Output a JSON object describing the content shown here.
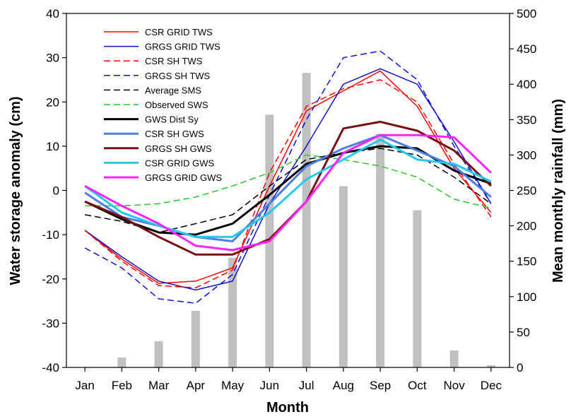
{
  "chart_data": {
    "type": "line",
    "categories": [
      "Jan",
      "Feb",
      "Mar",
      "Apr",
      "May",
      "Jun",
      "Jul",
      "Aug",
      "Sep",
      "Oct",
      "Nov",
      "Dec"
    ],
    "xlabel": "Month",
    "ylabel": "Water storage anomaly (cm)",
    "y2label": "Mean monthly rainfall (mm)",
    "ylim": [
      -40,
      40
    ],
    "y2lim": [
      0,
      500
    ],
    "yticks": [
      -40,
      -30,
      -20,
      -10,
      0,
      10,
      20,
      30,
      40
    ],
    "y2ticks": [
      0,
      50,
      100,
      150,
      200,
      250,
      300,
      350,
      400,
      450,
      500
    ],
    "grid": false,
    "legend_position": "top-left",
    "rainfall_bars": {
      "axis": "right",
      "color": "#c0c0c0",
      "values": [
        0,
        14,
        37,
        80,
        155,
        357,
        416,
        256,
        330,
        222,
        24,
        3
      ]
    },
    "series": [
      {
        "name": "CSR GRID TWS",
        "color": "#ff0000",
        "dash": "solid",
        "width": 1.5,
        "values": [
          -9,
          -15.5,
          -21,
          -20.5,
          -17.5,
          1,
          18,
          22.5,
          27,
          19,
          5,
          -5
        ]
      },
      {
        "name": "GRGS GRID TWS",
        "color": "#1010d0",
        "dash": "solid",
        "width": 1.5,
        "values": [
          -9,
          -15,
          -20.5,
          -22.5,
          -20.5,
          -3,
          10,
          24,
          27.5,
          24,
          11,
          -3
        ]
      },
      {
        "name": "CSR SH TWS",
        "color": "#ff0000",
        "dash": "dashed",
        "width": 1.5,
        "values": [
          -9,
          -16,
          -21.5,
          -22,
          -18,
          4,
          19,
          23,
          25,
          20,
          6,
          -6
        ]
      },
      {
        "name": "GRGS SH TWS",
        "color": "#1010d0",
        "dash": "dashed",
        "width": 1.5,
        "values": [
          -13,
          -17.5,
          -24.5,
          -25.5,
          -19,
          -1,
          16,
          30,
          31.5,
          25,
          10,
          -3
        ]
      },
      {
        "name": "Average SMS",
        "color": "#000000",
        "dash": "dashed",
        "width": 1.5,
        "values": [
          -5.5,
          -7,
          -9.5,
          -7.5,
          -5.5,
          1,
          7,
          8.5,
          9.5,
          8,
          3,
          -3
        ]
      },
      {
        "name": "Observed SWS",
        "color": "#22cc22",
        "dash": "dashed",
        "width": 1.5,
        "values": [
          -3.5,
          -3.5,
          -3,
          -1.5,
          1,
          4,
          8,
          7,
          5.5,
          3,
          -2,
          -4
        ]
      },
      {
        "name": "GWS Dist Sy",
        "color": "#000000",
        "dash": "solid",
        "width": 3,
        "values": [
          -2.5,
          -6.5,
          -9.5,
          -10,
          -7.5,
          -1,
          6,
          8.5,
          10,
          9.5,
          4.5,
          1.5
        ]
      },
      {
        "name": "CSR SH GWS",
        "color": "#4a7ee6",
        "dash": "solid",
        "width": 3,
        "values": [
          -0.5,
          -6,
          -8,
          -10.5,
          -11.5,
          -3,
          5.5,
          9.5,
          12.5,
          9,
          5.5,
          -1.5
        ]
      },
      {
        "name": "GRGS SH GWS",
        "color": "#7a0f0f",
        "dash": "solid",
        "width": 3,
        "values": [
          -2.5,
          -6,
          -10.5,
          -14.5,
          -14.5,
          -11,
          -2.5,
          14,
          15.5,
          13.5,
          9,
          1
        ]
      },
      {
        "name": "CSR GRID GWS",
        "color": "#22c8ee",
        "dash": "solid",
        "width": 3,
        "values": [
          1,
          -5,
          -8,
          -10.5,
          -10.5,
          -5,
          2.5,
          7,
          11.5,
          7,
          6,
          2
        ]
      },
      {
        "name": "GRGS GRID GWS",
        "color": "#ff22ff",
        "dash": "solid",
        "width": 3,
        "values": [
          1,
          -3.5,
          -7.5,
          -12.5,
          -13.5,
          -11.5,
          -2.5,
          8.5,
          12.5,
          12.5,
          12,
          4
        ]
      }
    ]
  }
}
